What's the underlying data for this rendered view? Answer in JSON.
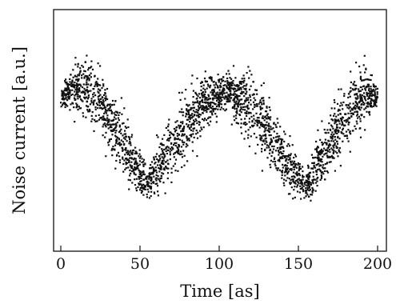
{
  "chart_data": {
    "type": "scatter",
    "xlabel": "Time [as]",
    "ylabel": "Noise current [a.u.]",
    "xlim": [
      0,
      200
    ],
    "ylim": [
      0,
      1
    ],
    "xticks": [
      0,
      50,
      100,
      150,
      200
    ],
    "xtick_labels": [
      "0",
      "50",
      "100",
      "150",
      "200"
    ],
    "yticks_visible": false,
    "grid": false,
    "legend": "none",
    "marker_color": "#111111",
    "series": [
      {
        "x": [
          0,
          10,
          20,
          30,
          40,
          50,
          55,
          60,
          70,
          80,
          90,
          100,
          105,
          110,
          120,
          130,
          140,
          150,
          155,
          160,
          170,
          180,
          190,
          200
        ],
        "y": [
          0.63,
          0.68,
          0.66,
          0.56,
          0.44,
          0.32,
          0.28,
          0.33,
          0.43,
          0.53,
          0.62,
          0.64,
          0.66,
          0.64,
          0.6,
          0.5,
          0.38,
          0.3,
          0.28,
          0.33,
          0.45,
          0.56,
          0.65,
          0.64
        ],
        "spread": [
          0.03,
          0.1,
          0.12,
          0.12,
          0.11,
          0.08,
          0.06,
          0.09,
          0.11,
          0.12,
          0.12,
          0.08,
          0.06,
          0.1,
          0.13,
          0.13,
          0.12,
          0.08,
          0.06,
          0.09,
          0.11,
          0.13,
          0.12,
          0.04
        ]
      }
    ]
  }
}
